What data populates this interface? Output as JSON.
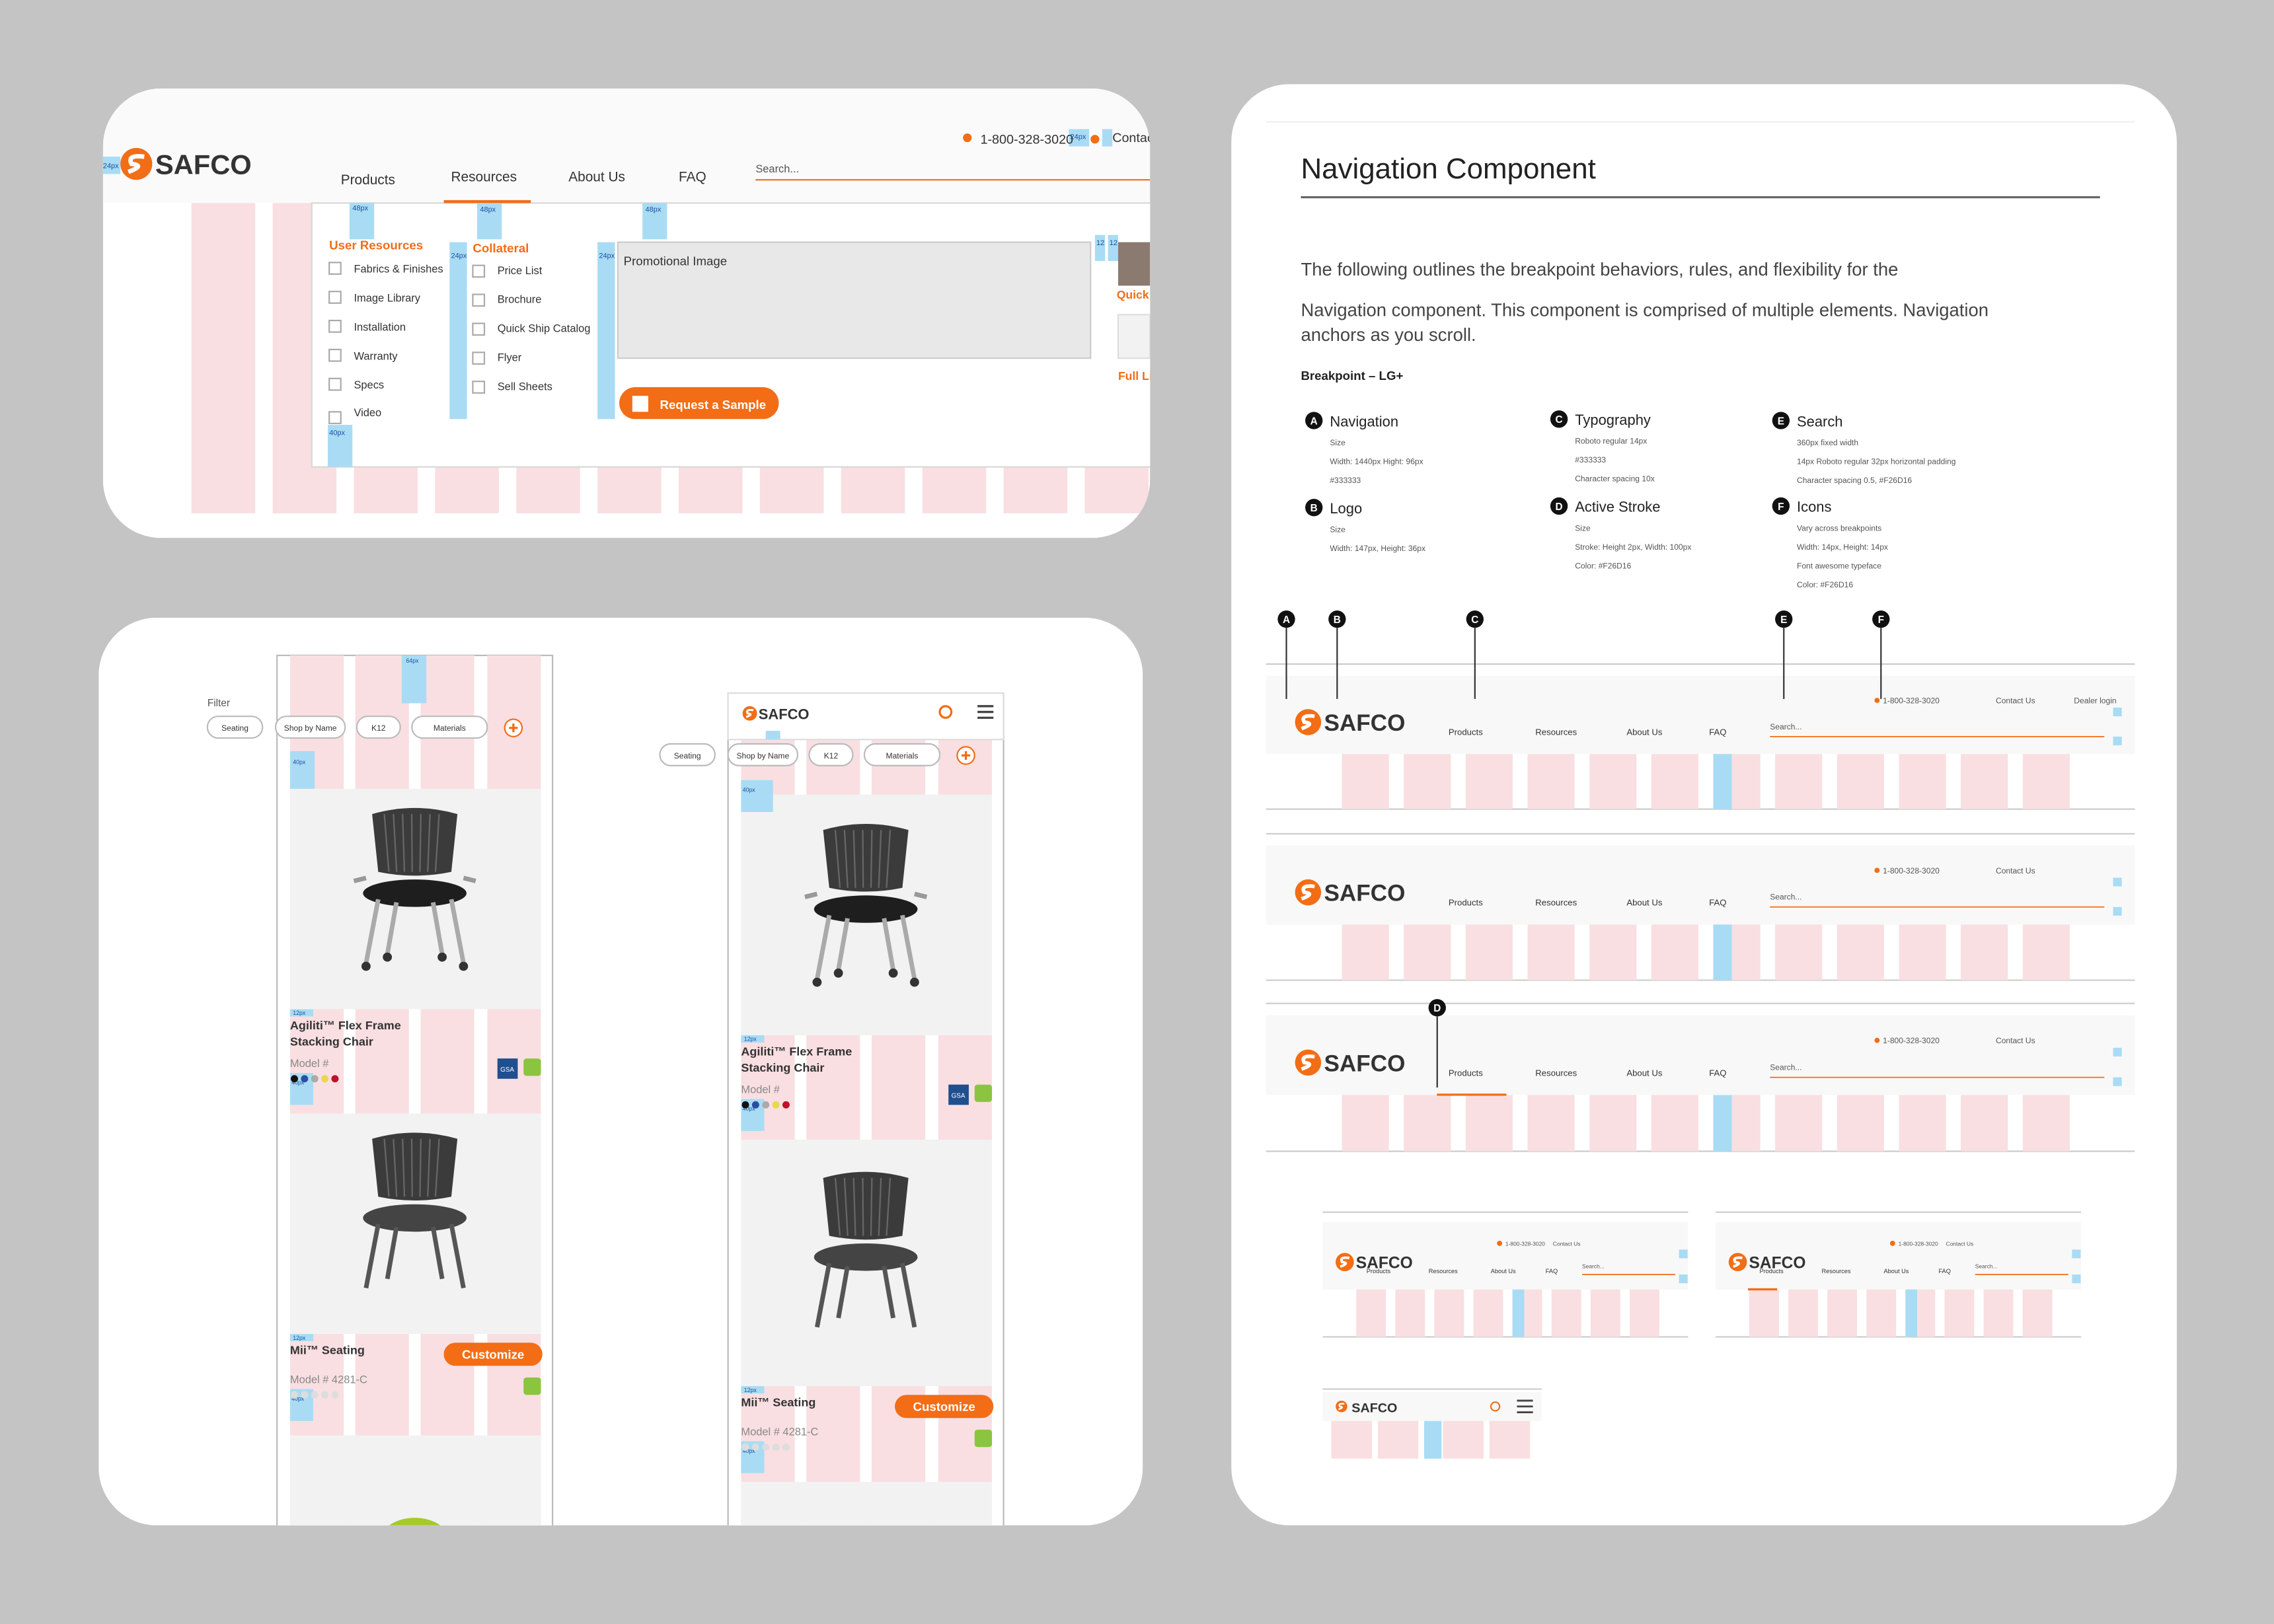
{
  "desktop": {
    "logo": "SAFCO",
    "phone": "1-800-328-3020",
    "contact": "Contac",
    "nav": [
      "Products",
      "Resources",
      "About Us",
      "FAQ"
    ],
    "search": "Search...",
    "user_resources": {
      "title": "User Resources",
      "items": [
        "Fabrics & Finishes",
        "Image Library",
        "Installation",
        "Warranty",
        "Specs",
        "Video"
      ]
    },
    "collateral": {
      "title": "Collateral",
      "items": [
        "Price List",
        "Brochure",
        "Quick Ship Catalog",
        "Flyer",
        "Sell Sheets"
      ]
    },
    "promo": "Promotional Image",
    "cta": "Request a Sample",
    "quick": "Quick S",
    "full": "Full Li",
    "spacing": [
      "48px",
      "24px",
      "40px",
      "12"
    ]
  },
  "mobile": {
    "filter": "Filter",
    "chips": [
      "Seating",
      "Shop by Name",
      "K12",
      "Materials"
    ],
    "products": [
      {
        "name": [
          "Agiliti™ Flex Frame",
          "Stacking Chair"
        ],
        "model": "Model #"
      },
      {
        "name": [
          "Mii™ Seating"
        ],
        "model": "Model # 4281-C",
        "button": "Customize"
      }
    ],
    "badge": "GSA",
    "logo": "SAFCO",
    "spacing": [
      "12px",
      "40px",
      "64px",
      "12",
      "px"
    ]
  },
  "spec": {
    "title": "Navigation Component",
    "paragraph": [
      "The following outlines the breakpoint behaviors, rules, and flexibility for the",
      "Navigation component. This component is comprised of multiple elements. Navigation",
      "anchors as you scroll."
    ],
    "breakpoint": "Breakpoint – LG+",
    "specs": [
      {
        "letter": "A",
        "title": "Navigation",
        "lines": [
          "Size",
          "Width: 1440px Hight: 96px",
          "#333333"
        ]
      },
      {
        "letter": "B",
        "title": "Logo",
        "lines": [
          "Size",
          "Width: 147px, Height: 36px"
        ]
      },
      {
        "letter": "C",
        "title": "Typography",
        "lines": [
          "Roboto regular 14px",
          "#333333",
          "Character spacing 10x"
        ]
      },
      {
        "letter": "D",
        "title": "Active Stroke",
        "lines": [
          "Size",
          "Stroke: Height 2px, Width: 100px",
          "Color: #F26D16"
        ]
      },
      {
        "letter": "E",
        "title": "Search",
        "lines": [
          "360px fixed width",
          "14px Roboto regular 32px horizontal padding",
          "Character spacing 0.5, #F26D16"
        ]
      },
      {
        "letter": "F",
        "title": "Icons",
        "lines": [
          "Vary across breakpoints",
          "Width: 14px, Height: 14px",
          "Font awesome typeface",
          "Color: #F26D16"
        ]
      }
    ],
    "markers": [
      "A",
      "B",
      "C",
      "E",
      "F",
      "D"
    ],
    "contact": "Contact Us",
    "dealer": "Dealer login"
  }
}
